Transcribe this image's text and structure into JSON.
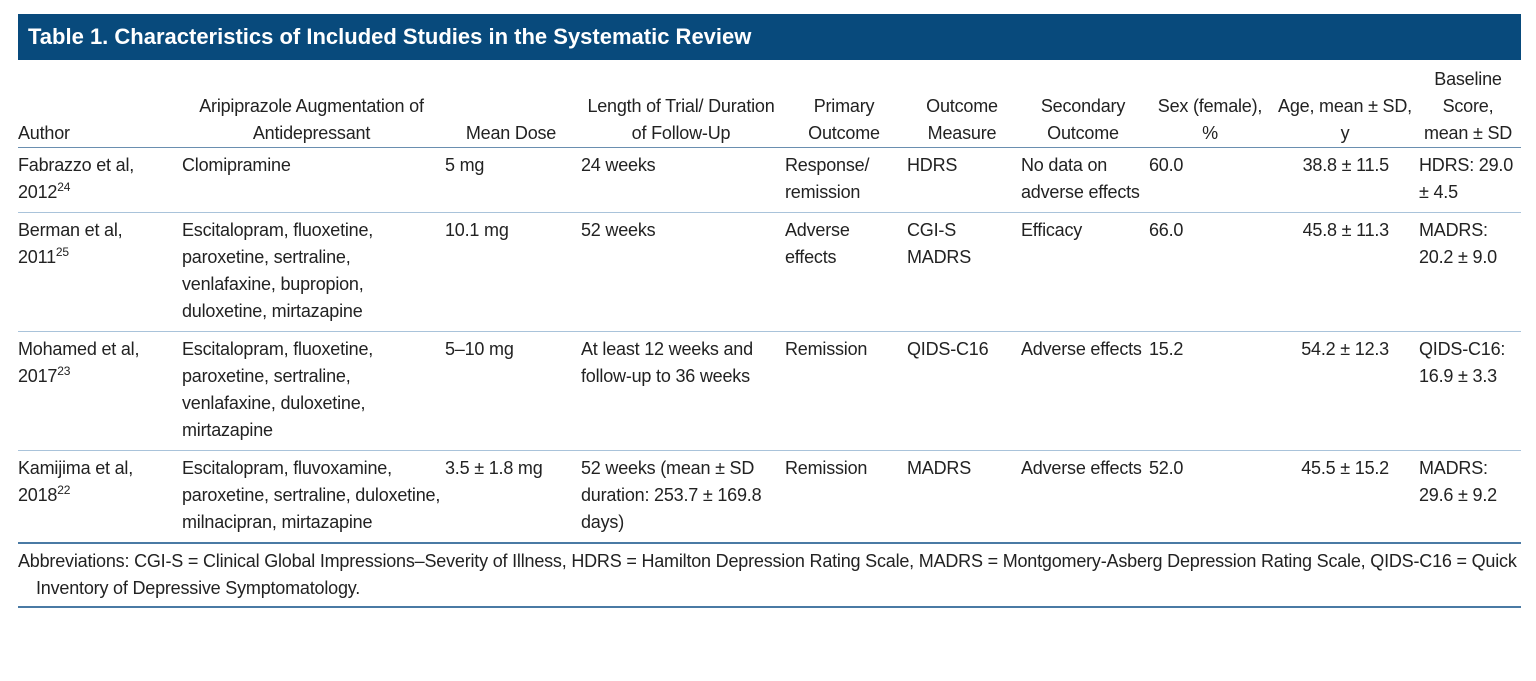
{
  "title": "Table 1. Characteristics of Included Studies in the Systematic Review",
  "table": {
    "header": [
      "Author",
      "Aripiprazole Augmentation of Antidepressant",
      "Mean Dose",
      "Length of Trial/ Duration of Follow-Up",
      "Primary Outcome",
      "Outcome Measure",
      "Secondary Outcome",
      "Sex (female), %",
      "Age, mean ± SD, y",
      "Baseline Score, mean ± SD"
    ],
    "rows": [
      [
        {
          "name": "Fabrazzo et al, 2012",
          "ref": "24"
        },
        "Clomipramine",
        "5 mg",
        "24 weeks",
        "Response/ remission",
        "HDRS",
        "No data on adverse effects",
        "60.0",
        "38.8 ± 11.5",
        "HDRS: 29.0 ± 4.5"
      ],
      [
        {
          "name": "Berman et al, 2011",
          "ref": "25"
        },
        "Escitalopram, fluoxetine, paroxetine, sertraline, venlafaxine, bupropion, duloxetine, mirtazapine",
        "10.1 mg",
        "52 weeks",
        "Adverse effects",
        "CGI-S MADRS",
        "Efficacy",
        "66.0",
        "45.8 ± 11.3",
        "MADRS: 20.2 ± 9.0"
      ],
      [
        {
          "name": "Mohamed et al, 2017",
          "ref": "23"
        },
        "Escitalopram, fluoxetine, paroxetine, sertraline, venlafaxine, duloxetine, mirtazapine",
        "5–10 mg",
        "At least 12 weeks and follow-up to 36 weeks",
        "Remission",
        "QIDS-C16",
        "Adverse effects",
        "15.2",
        "54.2 ± 12.3",
        "QIDS-C16: 16.9 ± 3.3"
      ],
      [
        {
          "name": "Kamijima et al, 2018",
          "ref": "22"
        },
        "Escitalopram, fluvoxamine, paroxetine, sertraline, duloxetine, milnacipran, mirtazapine",
        "3.5 ± 1.8 mg",
        "52 weeks (mean ± SD duration: 253.7 ± 169.8 days)",
        "Remission",
        "MADRS",
        "Adverse effects",
        "52.0",
        "45.5 ± 15.2",
        "MADRS: 29.6 ± 9.2"
      ]
    ]
  },
  "footnote": "Abbreviations: CGI-S = Clinical Global Impressions–Severity of Illness, HDRS = Hamilton Depression Rating Scale, MADRS = Montgomery-Asberg Depression Rating Scale, QIDS-C16 = Quick Inventory of Depressive Symptomatology."
}
